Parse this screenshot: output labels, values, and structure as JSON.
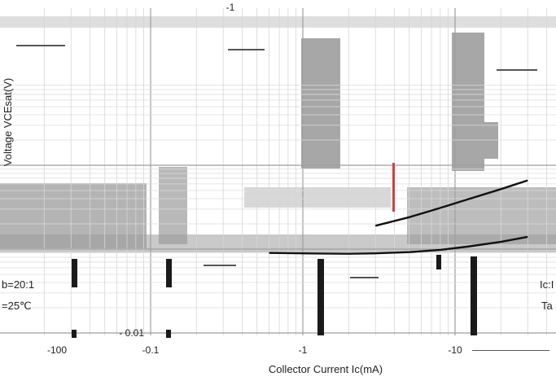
{
  "chart_data": {
    "type": "line",
    "title": "",
    "xlabel": "Collector Current Ic(mA)",
    "ylabel": "Voltage VCEsat(V)",
    "x_scale": "log",
    "y_scale": "log",
    "x_ticks": [
      {
        "value": 0.1,
        "label": "-0.1"
      },
      {
        "value": 1,
        "label": "-1"
      },
      {
        "value": 10,
        "label": "-10"
      }
    ],
    "x_tick_extra_label": "-100",
    "y_ticks": [
      {
        "value": 0.01,
        "label": "- 0.01"
      },
      {
        "value": 1,
        "label": "-1"
      }
    ],
    "annotations": {
      "left": [
        "b=20:1",
        "=25℃"
      ],
      "right": [
        "Ic:I",
        "Ta"
      ]
    },
    "series": [
      {
        "x": [
          0.6,
          1.0,
          2.0,
          3.0,
          5.0,
          8.0,
          12.0,
          20.0,
          30.0
        ],
        "y": [
          0.09,
          0.089,
          0.088,
          0.089,
          0.092,
          0.098,
          0.107,
          0.122,
          0.14
        ]
      },
      {
        "x": [
          3.0,
          5.0,
          8.0,
          12.0,
          20.0,
          30.0
        ],
        "y": [
          0.19,
          0.24,
          0.31,
          0.39,
          0.52,
          0.66
        ]
      }
    ]
  },
  "colors": {
    "background": "#ffffff",
    "grid": "#c8c8c8",
    "grid_block": "#a7a7a7",
    "line": "#111111",
    "marker_bar": "#1a1a1a",
    "accent_red": "#d04040"
  }
}
